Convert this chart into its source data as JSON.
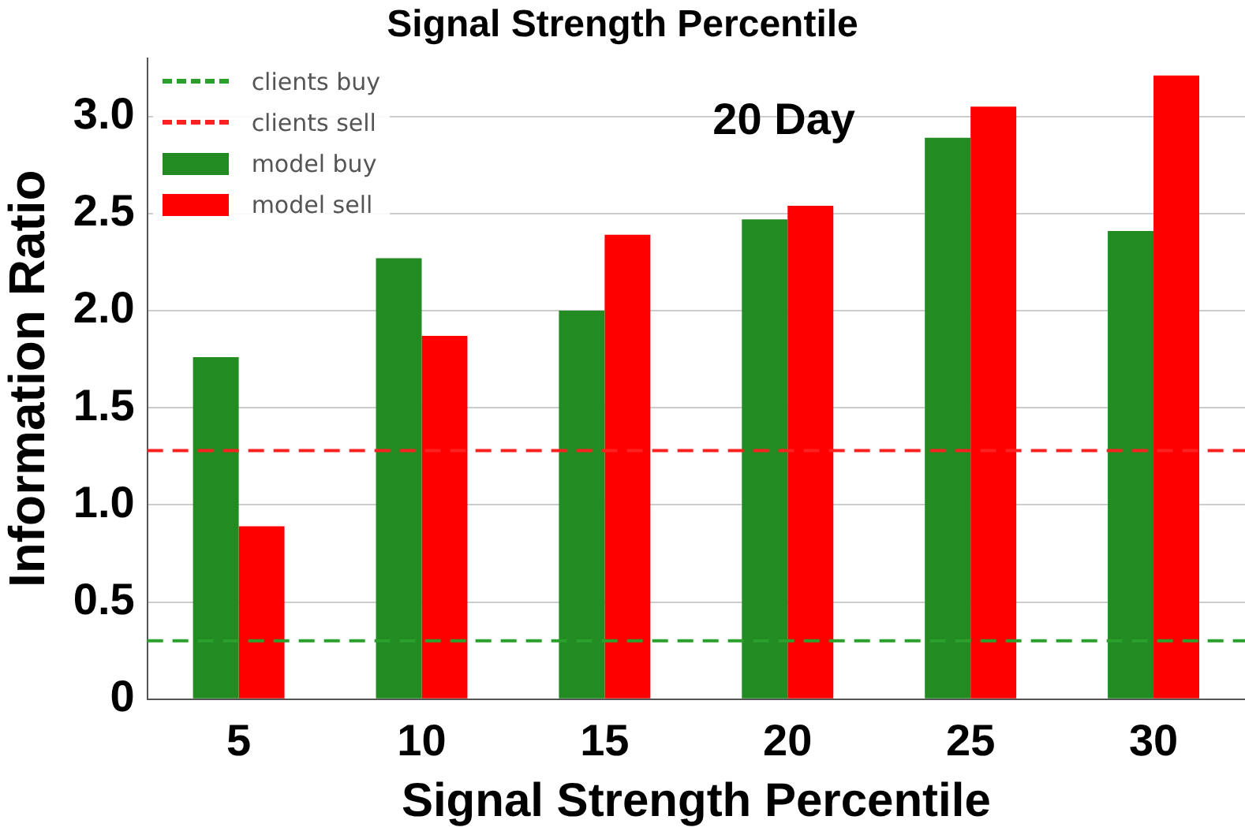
{
  "chart_data": {
    "type": "bar",
    "title": "Signal Strength Percentile",
    "xlabel": "Signal Strength Percentile",
    "ylabel": "Information Ratio",
    "annotations": [
      "20 Day"
    ],
    "categories": [
      "5",
      "10",
      "15",
      "20",
      "25",
      "30"
    ],
    "series": [
      {
        "name": "model buy",
        "color": "#228b22",
        "values": [
          1.76,
          2.27,
          2.0,
          2.47,
          2.89,
          2.41
        ]
      },
      {
        "name": "model sell",
        "color": "#ff0000",
        "values": [
          0.89,
          1.87,
          2.39,
          2.54,
          3.05,
          3.21
        ]
      }
    ],
    "ref_lines": [
      {
        "axis": "y",
        "value": 0.3,
        "label": "clients buy",
        "color": "#2ca02c",
        "line_style": "dashed"
      },
      {
        "axis": "y",
        "value": 1.28,
        "label": "clients sell",
        "color": "#ff2020",
        "line_style": "dashed"
      }
    ],
    "ylim": [
      0,
      3.3
    ],
    "yticks": [
      0,
      {
        "value": 0.5,
        "label": "0.5"
      },
      {
        "value": 1,
        "label": "1.0"
      },
      {
        "value": 1.5,
        "label": "1.5"
      },
      {
        "value": 2,
        "label": "2.0"
      },
      {
        "value": 2.5,
        "label": "2.5"
      },
      {
        "value": 3,
        "label": "3.0"
      }
    ],
    "grid": "y",
    "legend": "top left"
  }
}
